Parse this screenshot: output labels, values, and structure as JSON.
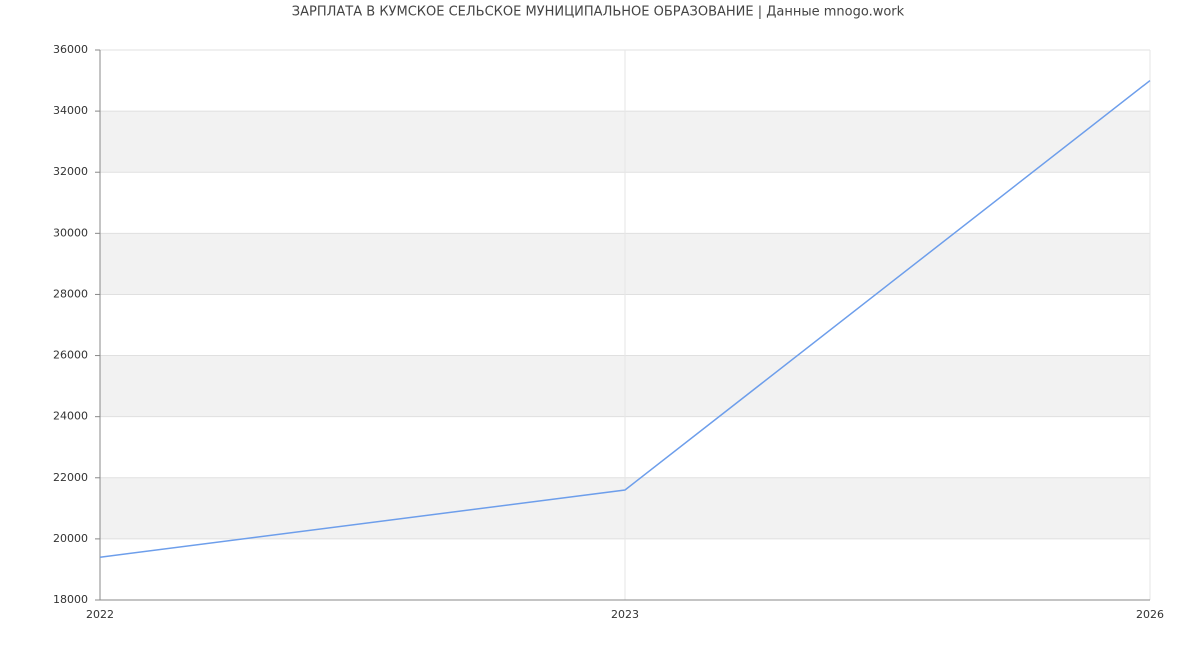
{
  "chart_data": {
    "type": "line",
    "title": "ЗАРПЛАТА В КУМСКОЕ СЕЛЬСКОЕ МУНИЦИПАЛЬНОЕ ОБРАЗОВАНИЕ | Данные mnogo.work",
    "categories": [
      "2022",
      "2023",
      "2026"
    ],
    "values": [
      19400,
      21600,
      35000
    ],
    "color": "#6d9eeb",
    "ylim": [
      18000,
      36000
    ],
    "yticks": [
      18000,
      20000,
      22000,
      24000,
      26000,
      28000,
      30000,
      32000,
      34000,
      36000
    ],
    "grid": true
  }
}
